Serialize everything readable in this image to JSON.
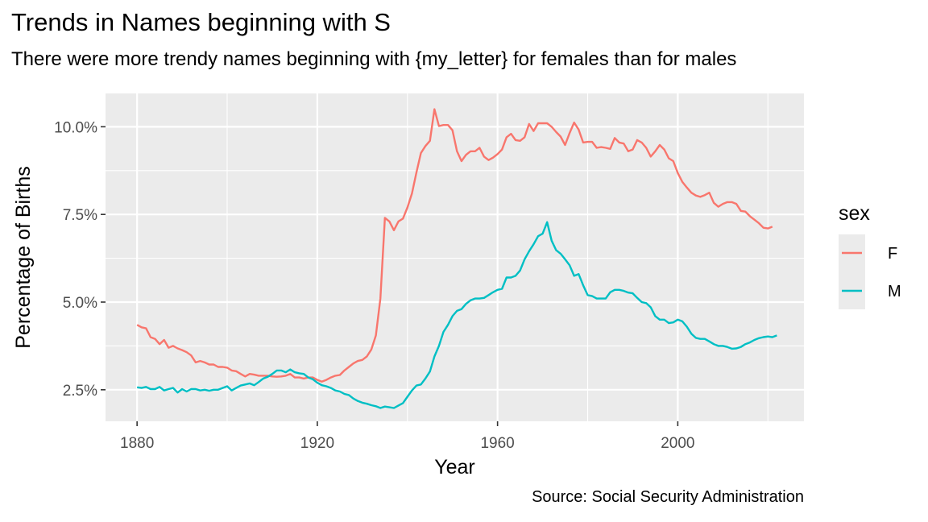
{
  "chart_data": {
    "type": "line",
    "title": "Trends in Names beginning with S",
    "subtitle": "There were more trendy names beginning with {my_letter} for females than for males",
    "caption": "Source: Social Security Administration",
    "xlabel": "Year",
    "ylabel": "Percentage of Births",
    "xlim": [
      1873,
      2028
    ],
    "ylim": [
      1.6,
      10.95
    ],
    "x_ticks": [
      1880,
      1920,
      1960,
      2000
    ],
    "y_ticks": [
      {
        "value": 2.5,
        "label": "2.5%"
      },
      {
        "value": 5.0,
        "label": "5.0%"
      },
      {
        "value": 7.5,
        "label": "7.5%"
      },
      {
        "value": 10.0,
        "label": "10.0%"
      }
    ],
    "grid": true,
    "legend": {
      "title": "sex",
      "position": "right"
    },
    "series": [
      {
        "name": "F",
        "color": "#F8766D",
        "points": [
          [
            1880,
            4.35
          ],
          [
            1881,
            4.28
          ],
          [
            1882,
            4.25
          ],
          [
            1883,
            4.0
          ],
          [
            1884,
            3.95
          ],
          [
            1885,
            3.8
          ],
          [
            1886,
            3.92
          ],
          [
            1887,
            3.7
          ],
          [
            1888,
            3.75
          ],
          [
            1889,
            3.68
          ],
          [
            1890,
            3.63
          ],
          [
            1891,
            3.57
          ],
          [
            1892,
            3.48
          ],
          [
            1893,
            3.28
          ],
          [
            1894,
            3.32
          ],
          [
            1895,
            3.28
          ],
          [
            1896,
            3.22
          ],
          [
            1897,
            3.22
          ],
          [
            1898,
            3.15
          ],
          [
            1899,
            3.15
          ],
          [
            1900,
            3.13
          ],
          [
            1901,
            3.05
          ],
          [
            1902,
            3.03
          ],
          [
            1903,
            2.95
          ],
          [
            1904,
            2.88
          ],
          [
            1905,
            2.95
          ],
          [
            1906,
            2.93
          ],
          [
            1907,
            2.9
          ],
          [
            1908,
            2.9
          ],
          [
            1909,
            2.9
          ],
          [
            1910,
            2.88
          ],
          [
            1911,
            2.87
          ],
          [
            1912,
            2.88
          ],
          [
            1913,
            2.9
          ],
          [
            1914,
            2.95
          ],
          [
            1915,
            2.85
          ],
          [
            1916,
            2.85
          ],
          [
            1917,
            2.82
          ],
          [
            1918,
            2.85
          ],
          [
            1919,
            2.85
          ],
          [
            1920,
            2.78
          ],
          [
            1921,
            2.73
          ],
          [
            1922,
            2.78
          ],
          [
            1923,
            2.85
          ],
          [
            1924,
            2.9
          ],
          [
            1925,
            2.92
          ],
          [
            1926,
            3.05
          ],
          [
            1927,
            3.15
          ],
          [
            1928,
            3.25
          ],
          [
            1929,
            3.32
          ],
          [
            1930,
            3.35
          ],
          [
            1931,
            3.45
          ],
          [
            1932,
            3.65
          ],
          [
            1933,
            4.05
          ],
          [
            1934,
            5.1
          ],
          [
            1935,
            7.4
          ],
          [
            1936,
            7.3
          ],
          [
            1937,
            7.05
          ],
          [
            1938,
            7.3
          ],
          [
            1939,
            7.38
          ],
          [
            1940,
            7.7
          ],
          [
            1941,
            8.1
          ],
          [
            1942,
            8.7
          ],
          [
            1943,
            9.25
          ],
          [
            1944,
            9.45
          ],
          [
            1945,
            9.6
          ],
          [
            1946,
            10.5
          ],
          [
            1947,
            10.02
          ],
          [
            1948,
            10.05
          ],
          [
            1949,
            10.05
          ],
          [
            1950,
            9.9
          ],
          [
            1951,
            9.3
          ],
          [
            1952,
            9.02
          ],
          [
            1953,
            9.2
          ],
          [
            1954,
            9.3
          ],
          [
            1955,
            9.3
          ],
          [
            1956,
            9.4
          ],
          [
            1957,
            9.15
          ],
          [
            1958,
            9.05
          ],
          [
            1959,
            9.12
          ],
          [
            1960,
            9.22
          ],
          [
            1961,
            9.35
          ],
          [
            1962,
            9.7
          ],
          [
            1963,
            9.8
          ],
          [
            1964,
            9.62
          ],
          [
            1965,
            9.6
          ],
          [
            1966,
            9.7
          ],
          [
            1967,
            10.08
          ],
          [
            1968,
            9.88
          ],
          [
            1969,
            10.1
          ],
          [
            1970,
            10.1
          ],
          [
            1971,
            10.1
          ],
          [
            1972,
            10.0
          ],
          [
            1973,
            9.85
          ],
          [
            1974,
            9.72
          ],
          [
            1975,
            9.48
          ],
          [
            1976,
            9.82
          ],
          [
            1977,
            10.12
          ],
          [
            1978,
            9.92
          ],
          [
            1979,
            9.55
          ],
          [
            1980,
            9.57
          ],
          [
            1981,
            9.57
          ],
          [
            1982,
            9.4
          ],
          [
            1983,
            9.42
          ],
          [
            1984,
            9.4
          ],
          [
            1985,
            9.37
          ],
          [
            1986,
            9.68
          ],
          [
            1987,
            9.55
          ],
          [
            1988,
            9.52
          ],
          [
            1989,
            9.3
          ],
          [
            1990,
            9.35
          ],
          [
            1991,
            9.62
          ],
          [
            1992,
            9.55
          ],
          [
            1993,
            9.4
          ],
          [
            1994,
            9.15
          ],
          [
            1995,
            9.3
          ],
          [
            1996,
            9.48
          ],
          [
            1997,
            9.35
          ],
          [
            1998,
            9.1
          ],
          [
            1999,
            9.02
          ],
          [
            2000,
            8.68
          ],
          [
            2001,
            8.43
          ],
          [
            2002,
            8.27
          ],
          [
            2003,
            8.12
          ],
          [
            2004,
            8.04
          ],
          [
            2005,
            8.0
          ],
          [
            2006,
            8.05
          ],
          [
            2007,
            8.12
          ],
          [
            2008,
            7.83
          ],
          [
            2009,
            7.72
          ],
          [
            2010,
            7.8
          ],
          [
            2011,
            7.85
          ],
          [
            2012,
            7.85
          ],
          [
            2013,
            7.8
          ],
          [
            2014,
            7.6
          ],
          [
            2015,
            7.58
          ],
          [
            2016,
            7.45
          ],
          [
            2017,
            7.35
          ],
          [
            2018,
            7.25
          ],
          [
            2019,
            7.12
          ],
          [
            2020,
            7.1
          ],
          [
            2021,
            7.15
          ]
        ]
      },
      {
        "name": "M",
        "color": "#00BFC4",
        "points": [
          [
            1880,
            2.57
          ],
          [
            1881,
            2.55
          ],
          [
            1882,
            2.58
          ],
          [
            1883,
            2.52
          ],
          [
            1884,
            2.52
          ],
          [
            1885,
            2.58
          ],
          [
            1886,
            2.48
          ],
          [
            1887,
            2.52
          ],
          [
            1888,
            2.55
          ],
          [
            1889,
            2.42
          ],
          [
            1890,
            2.52
          ],
          [
            1891,
            2.45
          ],
          [
            1892,
            2.52
          ],
          [
            1893,
            2.52
          ],
          [
            1894,
            2.48
          ],
          [
            1895,
            2.5
          ],
          [
            1896,
            2.47
          ],
          [
            1897,
            2.5
          ],
          [
            1898,
            2.5
          ],
          [
            1899,
            2.55
          ],
          [
            1900,
            2.6
          ],
          [
            1901,
            2.48
          ],
          [
            1902,
            2.55
          ],
          [
            1903,
            2.62
          ],
          [
            1904,
            2.65
          ],
          [
            1905,
            2.68
          ],
          [
            1906,
            2.63
          ],
          [
            1907,
            2.72
          ],
          [
            1908,
            2.82
          ],
          [
            1909,
            2.87
          ],
          [
            1910,
            2.95
          ],
          [
            1911,
            3.05
          ],
          [
            1912,
            3.05
          ],
          [
            1913,
            3.0
          ],
          [
            1914,
            3.08
          ],
          [
            1915,
            3.0
          ],
          [
            1916,
            2.97
          ],
          [
            1917,
            2.95
          ],
          [
            1918,
            2.85
          ],
          [
            1919,
            2.8
          ],
          [
            1920,
            2.7
          ],
          [
            1921,
            2.63
          ],
          [
            1922,
            2.6
          ],
          [
            1923,
            2.55
          ],
          [
            1924,
            2.48
          ],
          [
            1925,
            2.45
          ],
          [
            1926,
            2.38
          ],
          [
            1927,
            2.35
          ],
          [
            1928,
            2.25
          ],
          [
            1929,
            2.18
          ],
          [
            1930,
            2.13
          ],
          [
            1931,
            2.1
          ],
          [
            1932,
            2.06
          ],
          [
            1933,
            2.03
          ],
          [
            1934,
            1.98
          ],
          [
            1935,
            2.02
          ],
          [
            1936,
            2.0
          ],
          [
            1937,
            1.98
          ],
          [
            1938,
            2.05
          ],
          [
            1939,
            2.12
          ],
          [
            1940,
            2.3
          ],
          [
            1941,
            2.48
          ],
          [
            1942,
            2.62
          ],
          [
            1943,
            2.65
          ],
          [
            1944,
            2.82
          ],
          [
            1945,
            3.02
          ],
          [
            1946,
            3.45
          ],
          [
            1947,
            3.75
          ],
          [
            1948,
            4.15
          ],
          [
            1949,
            4.35
          ],
          [
            1950,
            4.6
          ],
          [
            1951,
            4.75
          ],
          [
            1952,
            4.8
          ],
          [
            1953,
            4.95
          ],
          [
            1954,
            5.05
          ],
          [
            1955,
            5.1
          ],
          [
            1956,
            5.1
          ],
          [
            1957,
            5.12
          ],
          [
            1958,
            5.2
          ],
          [
            1959,
            5.28
          ],
          [
            1960,
            5.35
          ],
          [
            1961,
            5.38
          ],
          [
            1962,
            5.7
          ],
          [
            1963,
            5.7
          ],
          [
            1964,
            5.75
          ],
          [
            1965,
            5.9
          ],
          [
            1966,
            6.22
          ],
          [
            1967,
            6.45
          ],
          [
            1968,
            6.65
          ],
          [
            1969,
            6.88
          ],
          [
            1970,
            6.95
          ],
          [
            1971,
            7.28
          ],
          [
            1972,
            6.75
          ],
          [
            1973,
            6.48
          ],
          [
            1974,
            6.38
          ],
          [
            1975,
            6.22
          ],
          [
            1976,
            6.05
          ],
          [
            1977,
            5.75
          ],
          [
            1978,
            5.8
          ],
          [
            1979,
            5.48
          ],
          [
            1980,
            5.2
          ],
          [
            1981,
            5.17
          ],
          [
            1982,
            5.1
          ],
          [
            1983,
            5.1
          ],
          [
            1984,
            5.1
          ],
          [
            1985,
            5.28
          ],
          [
            1986,
            5.35
          ],
          [
            1987,
            5.35
          ],
          [
            1988,
            5.32
          ],
          [
            1989,
            5.27
          ],
          [
            1990,
            5.25
          ],
          [
            1991,
            5.12
          ],
          [
            1992,
            5.0
          ],
          [
            1993,
            4.97
          ],
          [
            1994,
            4.85
          ],
          [
            1995,
            4.6
          ],
          [
            1996,
            4.5
          ],
          [
            1997,
            4.5
          ],
          [
            1998,
            4.4
          ],
          [
            1999,
            4.42
          ],
          [
            2000,
            4.5
          ],
          [
            2001,
            4.45
          ],
          [
            2002,
            4.3
          ],
          [
            2003,
            4.1
          ],
          [
            2004,
            3.98
          ],
          [
            2005,
            3.95
          ],
          [
            2006,
            3.95
          ],
          [
            2007,
            3.88
          ],
          [
            2008,
            3.8
          ],
          [
            2009,
            3.75
          ],
          [
            2010,
            3.75
          ],
          [
            2011,
            3.72
          ],
          [
            2012,
            3.67
          ],
          [
            2013,
            3.68
          ],
          [
            2014,
            3.72
          ],
          [
            2015,
            3.8
          ],
          [
            2016,
            3.85
          ],
          [
            2017,
            3.92
          ],
          [
            2018,
            3.97
          ],
          [
            2019,
            4.0
          ],
          [
            2020,
            4.02
          ],
          [
            2021,
            4.0
          ],
          [
            2022,
            4.05
          ]
        ]
      }
    ]
  }
}
